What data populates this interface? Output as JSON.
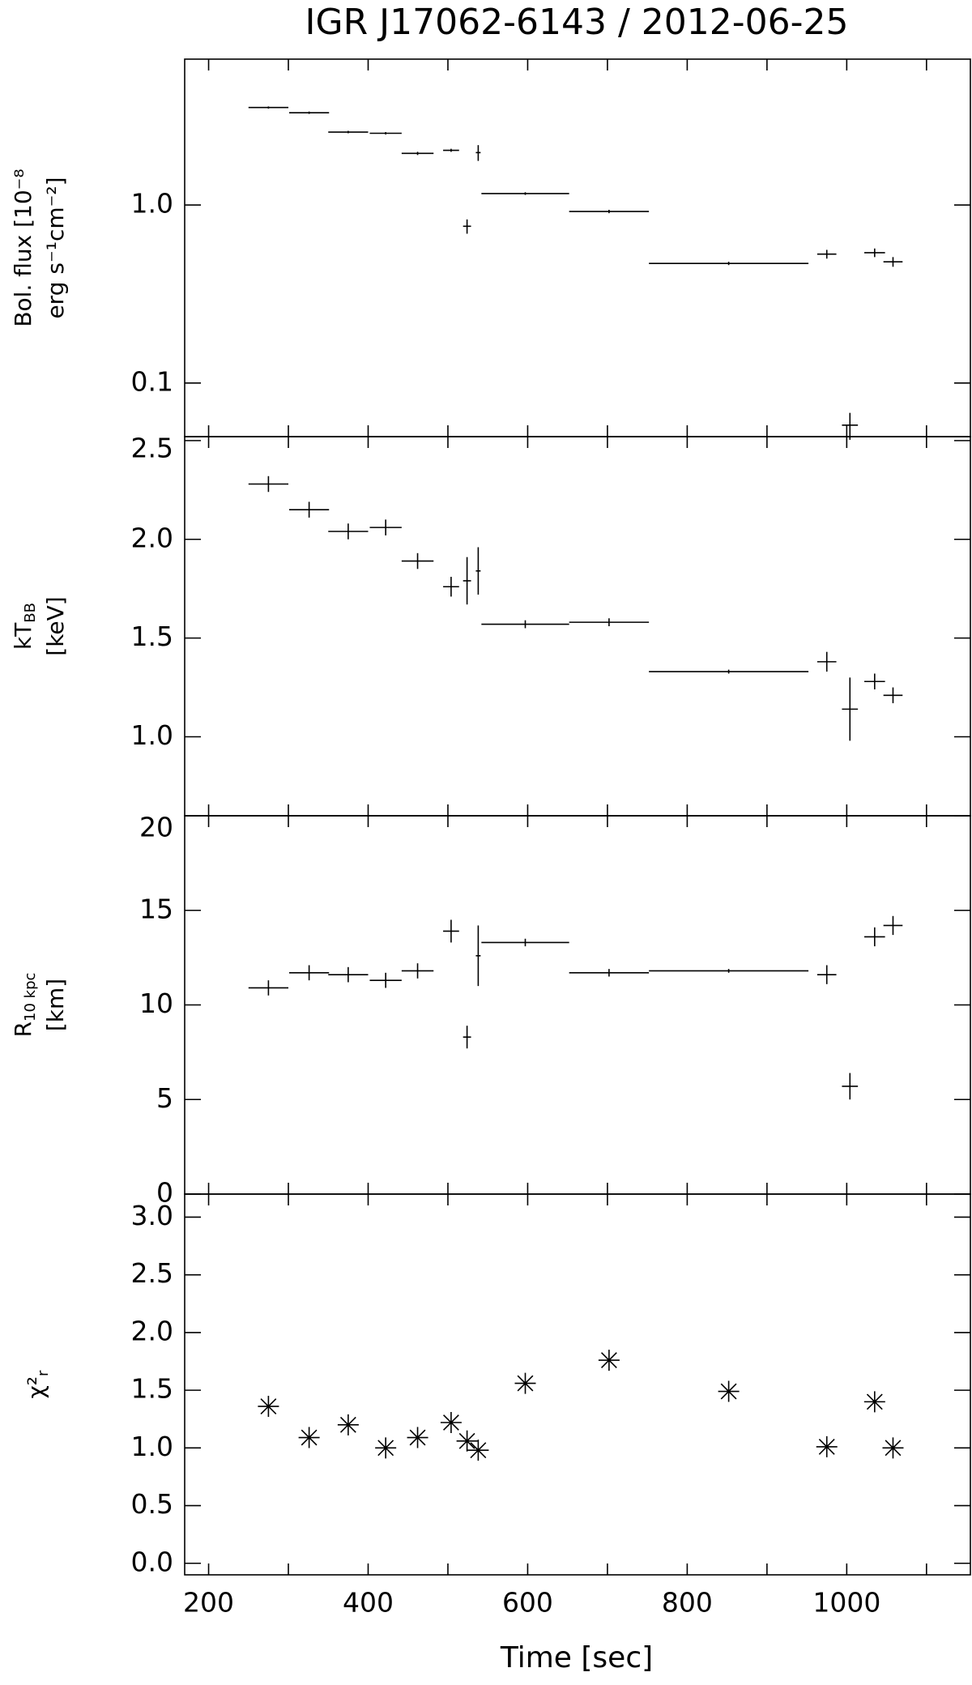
{
  "chart_data": [
    {
      "type": "errorbar",
      "title": "IGR J17062-6143 / 2012-06-25",
      "ylabel": [
        [
          "Bol. flux [10⁻⁸"
        ],
        [
          "erg s⁻¹cm⁻²]"
        ]
      ],
      "ylog": true,
      "ylim": [
        0.05,
        6.6
      ],
      "yticks": [
        {
          "value": 1,
          "label": "1.0"
        },
        0.1
      ],
      "xlim": [
        170,
        1155
      ],
      "xticks": [
        200,
        400,
        600,
        800,
        1000
      ],
      "xminorticks": [
        300,
        500,
        700,
        900,
        1100
      ],
      "color": "#000000",
      "x": [
        275,
        326,
        375,
        422,
        462,
        504,
        524,
        538,
        597,
        702,
        852,
        975,
        1004,
        1035,
        1058
      ],
      "xerr": [
        25,
        25,
        25,
        20,
        20,
        10,
        5,
        3,
        55,
        50,
        100,
        12,
        10,
        13,
        12
      ],
      "values": [
        3.53,
        3.3,
        2.57,
        2.53,
        1.95,
        2.03,
        0.76,
        1.97,
        1.16,
        0.92,
        0.47,
        0.53,
        0.058,
        0.54,
        0.48
      ],
      "yerr": [
        0.05,
        0.05,
        0.04,
        0.04,
        0.04,
        0.04,
        0.07,
        0.2,
        0.02,
        0.02,
        0.01,
        0.03,
        0.01,
        0.03,
        0.03
      ]
    },
    {
      "type": "errorbar",
      "ylabel": [
        [
          "kT",
          "BB"
        ],
        [
          "[keV]"
        ]
      ],
      "ylim": [
        0.6,
        2.52
      ],
      "yticks": [
        {
          "value": 1,
          "label": "1.0"
        },
        1.5,
        {
          "value": 2,
          "label": "2.0"
        },
        2.5
      ],
      "xlim": [
        170,
        1155
      ],
      "xticks": [
        200,
        400,
        600,
        800,
        1000
      ],
      "xminorticks": [
        300,
        500,
        700,
        900,
        1100
      ],
      "color": "#000000",
      "x": [
        275,
        326,
        375,
        422,
        462,
        504,
        524,
        538,
        597,
        702,
        852,
        975,
        1004,
        1035,
        1058
      ],
      "xerr": [
        25,
        25,
        25,
        20,
        20,
        10,
        5,
        3,
        55,
        50,
        100,
        12,
        10,
        13,
        12
      ],
      "values": [
        2.28,
        2.15,
        2.04,
        2.06,
        1.89,
        1.76,
        1.79,
        1.84,
        1.57,
        1.58,
        1.33,
        1.38,
        1.14,
        1.28,
        1.21
      ],
      "yerr": [
        0.04,
        0.04,
        0.04,
        0.04,
        0.04,
        0.05,
        0.12,
        0.12,
        0.02,
        0.02,
        0.01,
        0.05,
        0.16,
        0.04,
        0.04
      ]
    },
    {
      "type": "errorbar",
      "ylabel": [
        [
          "R",
          "10 kpc"
        ],
        [
          "[km]"
        ]
      ],
      "ylim": [
        0,
        20
      ],
      "yticks": [
        0,
        5,
        10,
        15,
        20
      ],
      "xlim": [
        170,
        1155
      ],
      "xticks": [
        200,
        400,
        600,
        800,
        1000
      ],
      "xminorticks": [
        300,
        500,
        700,
        900,
        1100
      ],
      "color": "#000000",
      "x": [
        275,
        326,
        375,
        422,
        462,
        504,
        524,
        538,
        597,
        702,
        852,
        975,
        1004,
        1035,
        1058
      ],
      "xerr": [
        25,
        25,
        25,
        20,
        20,
        10,
        5,
        3,
        55,
        50,
        100,
        12,
        10,
        13,
        12
      ],
      "values": [
        10.9,
        11.7,
        11.6,
        11.3,
        11.8,
        13.9,
        8.3,
        12.6,
        13.3,
        11.7,
        11.8,
        11.6,
        5.7,
        13.6,
        14.2
      ],
      "yerr": [
        0.4,
        0.4,
        0.4,
        0.4,
        0.4,
        0.6,
        0.6,
        1.6,
        0.2,
        0.2,
        0.1,
        0.5,
        0.7,
        0.5,
        0.5
      ]
    },
    {
      "type": "scatter",
      "ylabel": [
        [
          "χ²",
          "r"
        ]
      ],
      "ylim": [
        -0.1,
        3.2
      ],
      "yticks": [
        {
          "value": 0,
          "label": "0.0"
        },
        0.5,
        {
          "value": 1,
          "label": "1.0"
        },
        1.5,
        {
          "value": 2,
          "label": "2.0"
        },
        2.5,
        {
          "value": 3,
          "label": "3.0"
        }
      ],
      "xlim": [
        170,
        1155
      ],
      "xticks": [
        200,
        400,
        600,
        800,
        1000
      ],
      "xminorticks": [
        300,
        500,
        700,
        900,
        1100
      ],
      "xlabel": "Time [sec]",
      "color": "#000000",
      "x": [
        275,
        326,
        375,
        422,
        462,
        504,
        524,
        538,
        597,
        702,
        852,
        975,
        1004,
        1035,
        1058
      ],
      "values": [
        1.36,
        1.09,
        1.2,
        1.0,
        1.09,
        1.22,
        1.06,
        0.98,
        1.56,
        1.76,
        1.49,
        1.01,
        null,
        1.4,
        1.0
      ]
    }
  ]
}
